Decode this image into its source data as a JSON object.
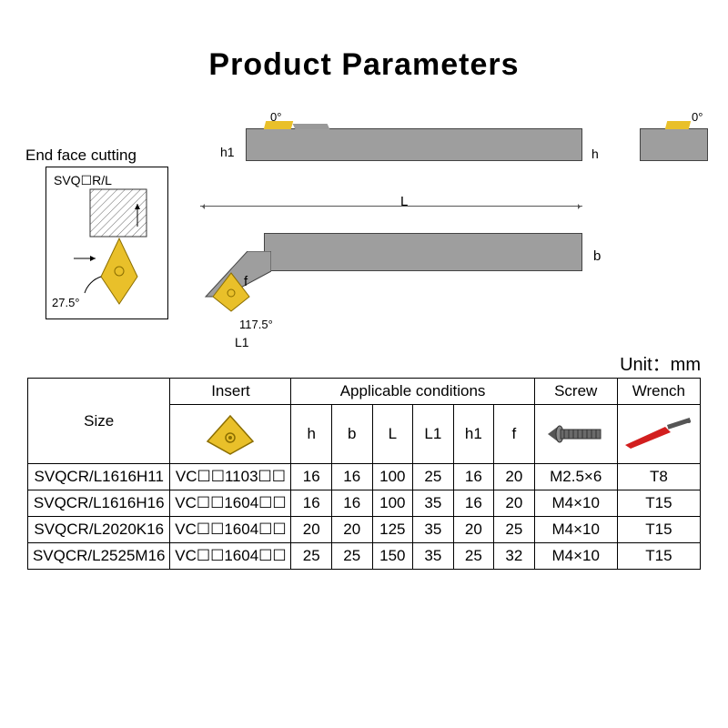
{
  "page": {
    "title": "Product Parameters",
    "title_fontsize": 34,
    "title_color": "#000000",
    "background": "#ffffff"
  },
  "diagram": {
    "end_face_label": "End face cutting",
    "svq_label": "SVQ☐R/L",
    "angle_275": "27.5°",
    "angle_1175": "117.5°",
    "angle_0_a": "0°",
    "angle_0_b": "0°",
    "dim_h1": "h1",
    "dim_h": "h",
    "dim_L": "L",
    "dim_b": "b",
    "dim_f": "f",
    "dim_L1": "L1",
    "unit_label": "Unit：mm",
    "colors": {
      "bar_fill": "#9e9e9e",
      "bar_stroke": "#444444",
      "insert_fill": "#e9c02a",
      "insert_stroke": "#a07d00",
      "hatch_stroke": "#666666",
      "wrench_red": "#d21e1e",
      "screw_fill": "#6a6a6a",
      "dim_line": "#555555"
    }
  },
  "table": {
    "headers": {
      "size": "Size",
      "insert": "Insert",
      "applicable": "Applicable conditions",
      "screw": "Screw",
      "wrench": "Wrench",
      "cond_cols": [
        "h",
        "b",
        "L",
        "L1",
        "h1",
        "f"
      ]
    },
    "rows": [
      {
        "size": "SVQCR/L1616H11",
        "insert": "VC☐☐1103☐☐",
        "h": "16",
        "b": "16",
        "L": "100",
        "L1": "25",
        "h1": "16",
        "f": "20",
        "screw": "M2.5×6",
        "wrench": "T8"
      },
      {
        "size": "SVQCR/L1616H16",
        "insert": "VC☐☐1604☐☐",
        "h": "16",
        "b": "16",
        "L": "100",
        "L1": "35",
        "h1": "16",
        "f": "20",
        "screw": "M4×10",
        "wrench": "T15"
      },
      {
        "size": "SVQCR/L2020K16",
        "insert": "VC☐☐1604☐☐",
        "h": "20",
        "b": "20",
        "L": "125",
        "L1": "35",
        "h1": "20",
        "f": "25",
        "screw": "M4×10",
        "wrench": "T15"
      },
      {
        "size": "SVQCR/L2525M16",
        "insert": "VC☐☐1604☐☐",
        "h": "25",
        "b": "25",
        "L": "150",
        "L1": "35",
        "h1": "25",
        "f": "32",
        "screw": "M4×10",
        "wrench": "T15"
      }
    ],
    "font_size": 17,
    "border_color": "#000000"
  }
}
